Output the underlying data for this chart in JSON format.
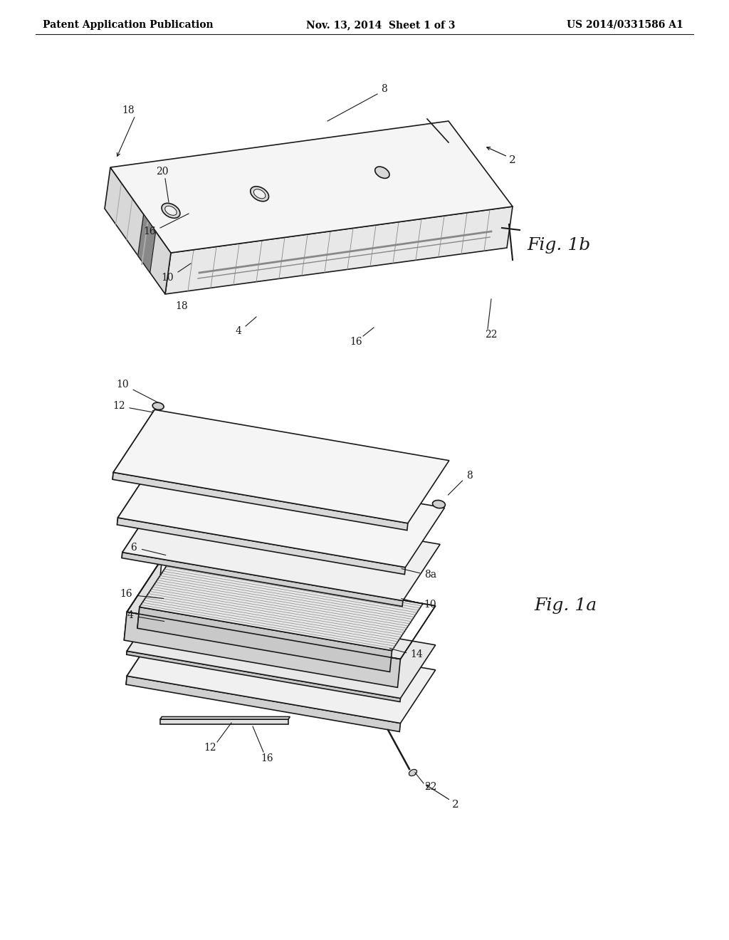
{
  "bg_color": "#ffffff",
  "lc": "#1a1a1a",
  "header_left": "Patent Application Publication",
  "header_center": "Nov. 13, 2014  Sheet 1 of 3",
  "header_right": "US 2014/0331586 A1",
  "fig1b_label": "Fig. 1b",
  "fig1a_label": "Fig. 1a",
  "header_fs": 10,
  "ref_fs": 10,
  "fig_label_fs": 18
}
